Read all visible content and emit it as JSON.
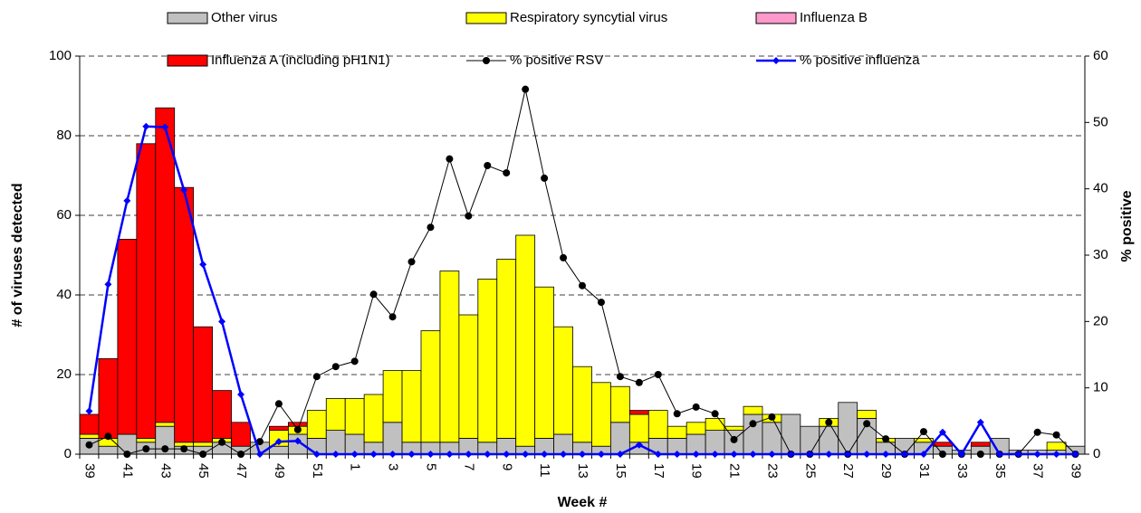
{
  "chart_data": {
    "type": "bar",
    "stacked": true,
    "grid": true,
    "legend": "top",
    "x_label": "Week #",
    "y_label": "# of viruses detected",
    "y2_label": "% positive",
    "categories": [
      "39",
      null,
      "41",
      null,
      "43",
      null,
      "45",
      null,
      "47",
      null,
      "49",
      null,
      "51",
      null,
      "1",
      null,
      "3",
      null,
      "5",
      null,
      "7",
      null,
      "9",
      null,
      "11",
      null,
      "13",
      null,
      "15",
      null,
      "17",
      null,
      "19",
      null,
      "21",
      null,
      "23",
      null,
      "25",
      null,
      "27",
      null,
      "29",
      null,
      "31",
      null,
      "33",
      null,
      "35",
      null,
      "37",
      null,
      "39"
    ],
    "ylim": [
      0,
      100
    ],
    "yticks": [
      0,
      20,
      40,
      60,
      80,
      100
    ],
    "y2lim": [
      0,
      60
    ],
    "y2ticks": [
      0,
      10,
      20,
      30,
      40,
      50,
      60
    ],
    "series": [
      {
        "name": "Other virus",
        "type": "bar",
        "color": "#c0c0c0",
        "values": [
          4,
          2,
          5,
          3,
          7,
          2,
          2,
          3,
          2,
          3,
          2,
          5,
          4,
          6,
          5,
          3,
          8,
          3,
          3,
          3,
          4,
          3,
          4,
          2,
          4,
          5,
          3,
          2,
          8,
          3,
          4,
          4,
          5,
          6,
          6,
          10,
          8,
          10,
          7,
          7,
          13,
          9,
          3,
          4,
          3,
          2,
          1,
          2,
          4,
          1,
          1,
          1,
          2
        ]
      },
      {
        "name": "Respiratory syncytial virus",
        "type": "bar",
        "color": "#ffff00",
        "values": [
          1,
          2,
          0,
          1,
          1,
          1,
          1,
          1,
          0,
          0,
          4,
          2,
          7,
          8,
          9,
          12,
          13,
          18,
          28,
          43,
          31,
          41,
          45,
          53,
          38,
          27,
          19,
          16,
          9,
          7,
          7,
          3,
          3,
          3,
          1,
          2,
          2,
          0,
          0,
          2,
          0,
          2,
          1,
          0,
          1,
          0,
          0,
          0,
          0,
          0,
          0,
          2,
          0
        ]
      },
      {
        "name": "Influenza B",
        "type": "bar",
        "color": "#ff99cc",
        "values": [
          0,
          0,
          0,
          0,
          0,
          0,
          0,
          0,
          0,
          0,
          0,
          0,
          0,
          0,
          0,
          0,
          0,
          0,
          0,
          0,
          0,
          0,
          0,
          0,
          0,
          0,
          0,
          0,
          0,
          0,
          0,
          0,
          0,
          0,
          0,
          0,
          0,
          0,
          0,
          0,
          0,
          0,
          0,
          0,
          0,
          0,
          0,
          0,
          0,
          0,
          0,
          0,
          0
        ]
      },
      {
        "name": "Influenza A (including pH1N1)",
        "type": "bar",
        "color": "#ff0000",
        "values": [
          5,
          20,
          49,
          74,
          79,
          64,
          29,
          12,
          6,
          0,
          1,
          1,
          0,
          0,
          0,
          0,
          0,
          0,
          0,
          0,
          0,
          0,
          0,
          0,
          0,
          0,
          0,
          0,
          0,
          1,
          0,
          0,
          0,
          0,
          0,
          0,
          0,
          0,
          0,
          0,
          0,
          0,
          0,
          0,
          0,
          1,
          0,
          1,
          0,
          0,
          0,
          0,
          0
        ]
      },
      {
        "name": "% positive RSV",
        "type": "line",
        "axis": "y2",
        "marker": "circle",
        "color": "#000000",
        "values": [
          1.4,
          2.7,
          0,
          0.8,
          0.8,
          0.8,
          0,
          1.8,
          0,
          1.9,
          7.6,
          3.7,
          11.7,
          13.2,
          14,
          24.1,
          20.7,
          29,
          34.2,
          44.5,
          35.9,
          43.5,
          42.4,
          55,
          41.6,
          29.6,
          25.4,
          22.9,
          11.7,
          10.8,
          12,
          6.1,
          7.1,
          6.1,
          2.2,
          4.6,
          5.6,
          0,
          0,
          4.8,
          0,
          4.6,
          2.3,
          0,
          3.4,
          0,
          0,
          0,
          0,
          0,
          3.3,
          2.9,
          0
        ]
      },
      {
        "name": "% positive influenza",
        "type": "line",
        "axis": "y2",
        "marker": "diamond",
        "color": "#0000ff",
        "values": [
          6.5,
          25.6,
          38.2,
          49.4,
          49.3,
          39.8,
          28.6,
          20,
          9,
          0,
          1.9,
          2,
          0,
          0,
          0,
          0,
          0,
          0,
          0,
          0,
          0,
          0,
          0,
          0,
          0,
          0,
          0,
          0,
          0,
          1.4,
          0,
          0,
          0,
          0,
          0,
          0,
          0,
          0,
          0,
          0,
          0,
          0,
          0,
          0,
          0,
          3.3,
          0,
          4.8,
          0,
          0,
          0,
          0,
          0
        ]
      }
    ]
  }
}
